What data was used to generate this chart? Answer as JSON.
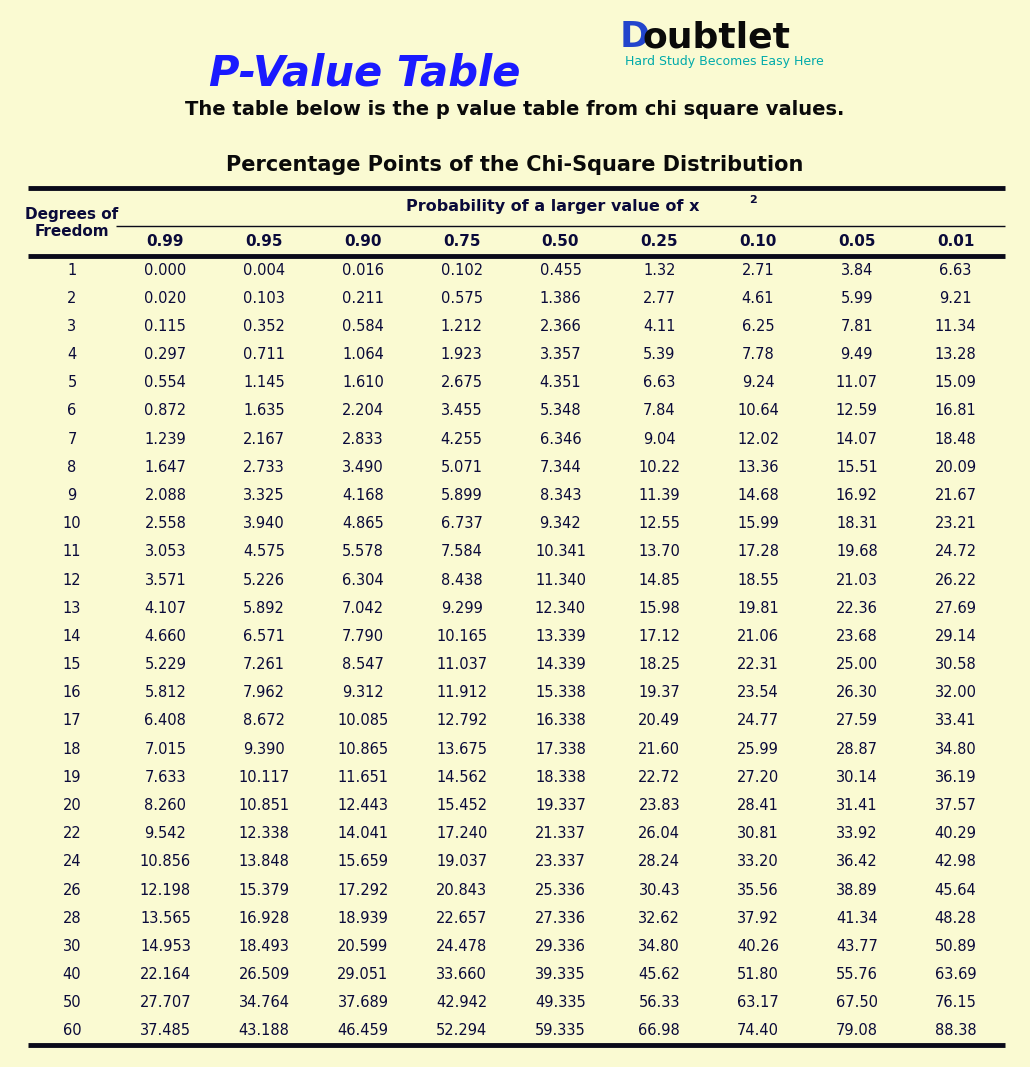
{
  "title": "P-Value Table",
  "subtitle": "The table below is the p value table from chi square values.",
  "table_title": "Percentage Points of the Chi-Square Distribution",
  "logo_text": "oubtlet",
  "logo_tagline": "Hard Study Becomes Easy Here",
  "prob_cols": [
    "0.99",
    "0.95",
    "0.90",
    "0.75",
    "0.50",
    "0.25",
    "0.10",
    "0.05",
    "0.01"
  ],
  "rows": [
    [
      1,
      "0.000",
      "0.004",
      "0.016",
      "0.102",
      "0.455",
      "1.32",
      "2.71",
      "3.84",
      "6.63"
    ],
    [
      2,
      "0.020",
      "0.103",
      "0.211",
      "0.575",
      "1.386",
      "2.77",
      "4.61",
      "5.99",
      "9.21"
    ],
    [
      3,
      "0.115",
      "0.352",
      "0.584",
      "1.212",
      "2.366",
      "4.11",
      "6.25",
      "7.81",
      "11.34"
    ],
    [
      4,
      "0.297",
      "0.711",
      "1.064",
      "1.923",
      "3.357",
      "5.39",
      "7.78",
      "9.49",
      "13.28"
    ],
    [
      5,
      "0.554",
      "1.145",
      "1.610",
      "2.675",
      "4.351",
      "6.63",
      "9.24",
      "11.07",
      "15.09"
    ],
    [
      6,
      "0.872",
      "1.635",
      "2.204",
      "3.455",
      "5.348",
      "7.84",
      "10.64",
      "12.59",
      "16.81"
    ],
    [
      7,
      "1.239",
      "2.167",
      "2.833",
      "4.255",
      "6.346",
      "9.04",
      "12.02",
      "14.07",
      "18.48"
    ],
    [
      8,
      "1.647",
      "2.733",
      "3.490",
      "5.071",
      "7.344",
      "10.22",
      "13.36",
      "15.51",
      "20.09"
    ],
    [
      9,
      "2.088",
      "3.325",
      "4.168",
      "5.899",
      "8.343",
      "11.39",
      "14.68",
      "16.92",
      "21.67"
    ],
    [
      10,
      "2.558",
      "3.940",
      "4.865",
      "6.737",
      "9.342",
      "12.55",
      "15.99",
      "18.31",
      "23.21"
    ],
    [
      11,
      "3.053",
      "4.575",
      "5.578",
      "7.584",
      "10.341",
      "13.70",
      "17.28",
      "19.68",
      "24.72"
    ],
    [
      12,
      "3.571",
      "5.226",
      "6.304",
      "8.438",
      "11.340",
      "14.85",
      "18.55",
      "21.03",
      "26.22"
    ],
    [
      13,
      "4.107",
      "5.892",
      "7.042",
      "9.299",
      "12.340",
      "15.98",
      "19.81",
      "22.36",
      "27.69"
    ],
    [
      14,
      "4.660",
      "6.571",
      "7.790",
      "10.165",
      "13.339",
      "17.12",
      "21.06",
      "23.68",
      "29.14"
    ],
    [
      15,
      "5.229",
      "7.261",
      "8.547",
      "11.037",
      "14.339",
      "18.25",
      "22.31",
      "25.00",
      "30.58"
    ],
    [
      16,
      "5.812",
      "7.962",
      "9.312",
      "11.912",
      "15.338",
      "19.37",
      "23.54",
      "26.30",
      "32.00"
    ],
    [
      17,
      "6.408",
      "8.672",
      "10.085",
      "12.792",
      "16.338",
      "20.49",
      "24.77",
      "27.59",
      "33.41"
    ],
    [
      18,
      "7.015",
      "9.390",
      "10.865",
      "13.675",
      "17.338",
      "21.60",
      "25.99",
      "28.87",
      "34.80"
    ],
    [
      19,
      "7.633",
      "10.117",
      "11.651",
      "14.562",
      "18.338",
      "22.72",
      "27.20",
      "30.14",
      "36.19"
    ],
    [
      20,
      "8.260",
      "10.851",
      "12.443",
      "15.452",
      "19.337",
      "23.83",
      "28.41",
      "31.41",
      "37.57"
    ],
    [
      22,
      "9.542",
      "12.338",
      "14.041",
      "17.240",
      "21.337",
      "26.04",
      "30.81",
      "33.92",
      "40.29"
    ],
    [
      24,
      "10.856",
      "13.848",
      "15.659",
      "19.037",
      "23.337",
      "28.24",
      "33.20",
      "36.42",
      "42.98"
    ],
    [
      26,
      "12.198",
      "15.379",
      "17.292",
      "20.843",
      "25.336",
      "30.43",
      "35.56",
      "38.89",
      "45.64"
    ],
    [
      28,
      "13.565",
      "16.928",
      "18.939",
      "22.657",
      "27.336",
      "32.62",
      "37.92",
      "41.34",
      "48.28"
    ],
    [
      30,
      "14.953",
      "18.493",
      "20.599",
      "24.478",
      "29.336",
      "34.80",
      "40.26",
      "43.77",
      "50.89"
    ],
    [
      40,
      "22.164",
      "26.509",
      "29.051",
      "33.660",
      "39.335",
      "45.62",
      "51.80",
      "55.76",
      "63.69"
    ],
    [
      50,
      "27.707",
      "34.764",
      "37.689",
      "42.942",
      "49.335",
      "56.33",
      "63.17",
      "67.50",
      "76.15"
    ],
    [
      60,
      "37.485",
      "43.188",
      "46.459",
      "52.294",
      "59.335",
      "66.98",
      "74.40",
      "79.08",
      "88.38"
    ]
  ],
  "bg_color": "#FAFAD2",
  "title_color": "#1a1aff",
  "subtitle_color": "#0a0a0a",
  "table_title_color": "#0a0a0a",
  "header_color": "#0a0a3a",
  "data_color": "#0a0a3a",
  "line_color": "#0a0a1a",
  "logo_color": "#0a0a0a",
  "logo_tagline_color": "#00aaaa"
}
